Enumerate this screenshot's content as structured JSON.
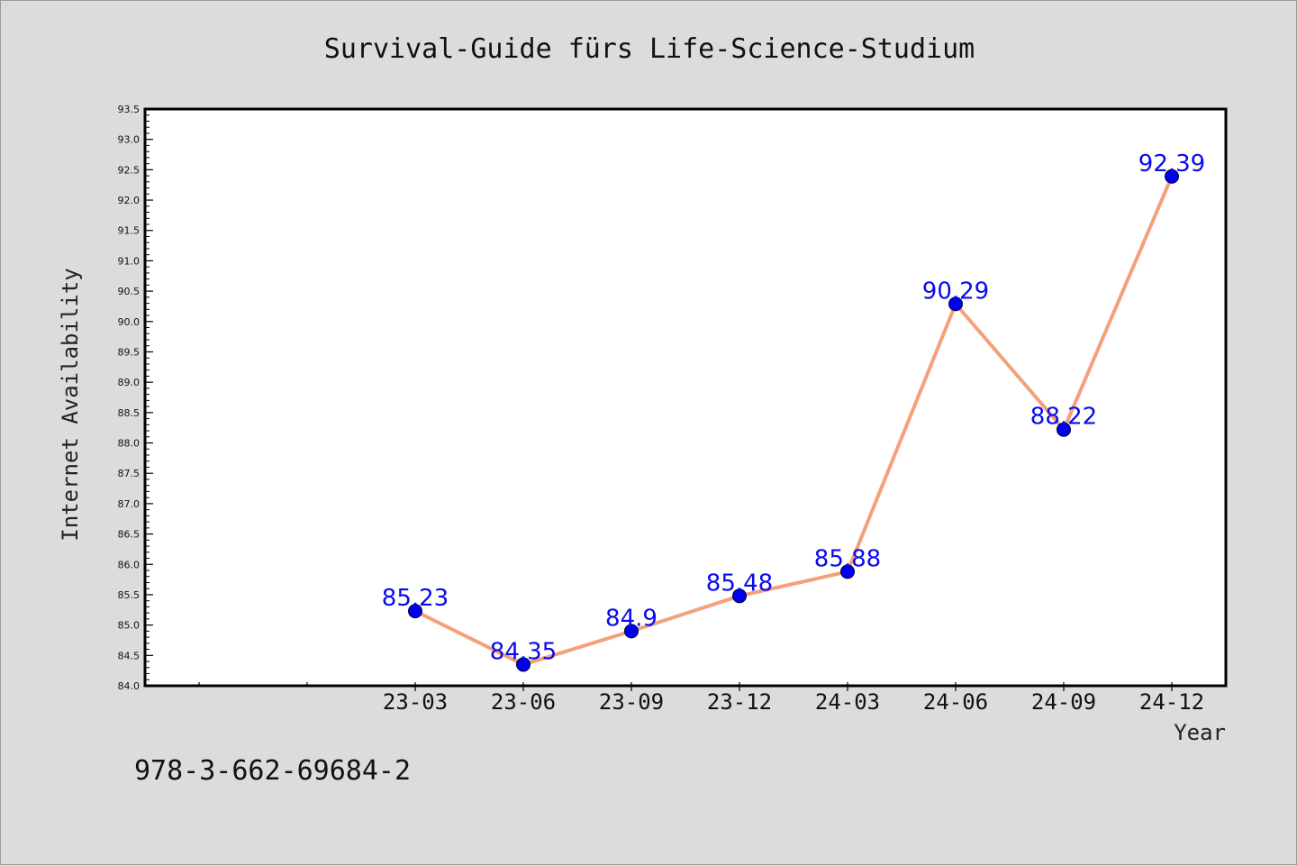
{
  "chart_data": {
    "type": "line",
    "title": "Survival-Guide fürs Life-Science-Studium",
    "xlabel": "Year",
    "ylabel": "Internet Availability",
    "categories": [
      "23-03",
      "23-06",
      "23-09",
      "23-12",
      "24-03",
      "24-06",
      "24-09",
      "24-12"
    ],
    "values": [
      85.23,
      84.35,
      84.9,
      85.48,
      85.88,
      90.29,
      88.22,
      92.39
    ],
    "data_labels": [
      "85.23",
      "84.35",
      "84.9",
      "85.48",
      "85.88",
      "90.29",
      "88.22",
      "92.39"
    ],
    "ylim": [
      84.0,
      93.5
    ],
    "yticks": [
      "84.0",
      "84.5",
      "85.0",
      "85.5",
      "86.0",
      "86.5",
      "87.0",
      "87.5",
      "88.0",
      "88.5",
      "89.0",
      "89.5",
      "90.0",
      "90.5",
      "91.0",
      "91.5",
      "92.0",
      "92.5",
      "93.0",
      "93.5"
    ],
    "grid": false,
    "line_color": "#f4a07a",
    "marker_color": "#0000ee",
    "label_color": "#0a0af0"
  },
  "footer": {
    "isbn": "978-3-662-69684-2"
  }
}
